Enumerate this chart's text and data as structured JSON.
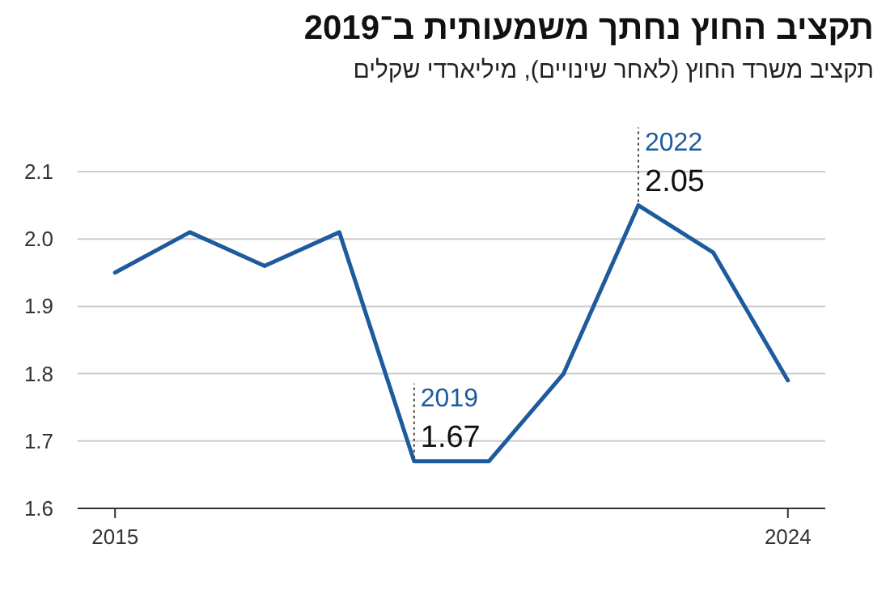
{
  "chart_data": {
    "type": "line",
    "title": "תקציב החוץ נחתך משמעותית ב־2019",
    "subtitle": "תקציב משרד החוץ (לאחר שינויים), מיליארדי שקלים",
    "x": [
      2015,
      2016,
      2017,
      2018,
      2019,
      2020,
      2021,
      2022,
      2023,
      2024
    ],
    "series": [
      {
        "color": "#1d5a9e",
        "values": [
          1.95,
          2.01,
          1.96,
          2.01,
          1.67,
          1.67,
          1.8,
          2.05,
          1.98,
          1.79
        ],
        "value_labels": [
          null,
          null,
          null,
          null,
          "1.67",
          null,
          null,
          "2.05",
          null,
          null
        ]
      }
    ],
    "annotations": [
      {
        "text": "2019",
        "x": 2019,
        "y": 1.67
      },
      {
        "text": "2022",
        "x": 2022,
        "y": 2.05
      }
    ],
    "xlim": [
      2014.5,
      2024.5
    ],
    "xticks": [
      2015,
      2024
    ],
    "ylim": [
      1.6,
      2.1
    ],
    "yticks": [
      1.6,
      1.7,
      1.8,
      1.9,
      {
        "value": 2.0,
        "label": "2.0"
      },
      2.1
    ],
    "grid": "y"
  }
}
